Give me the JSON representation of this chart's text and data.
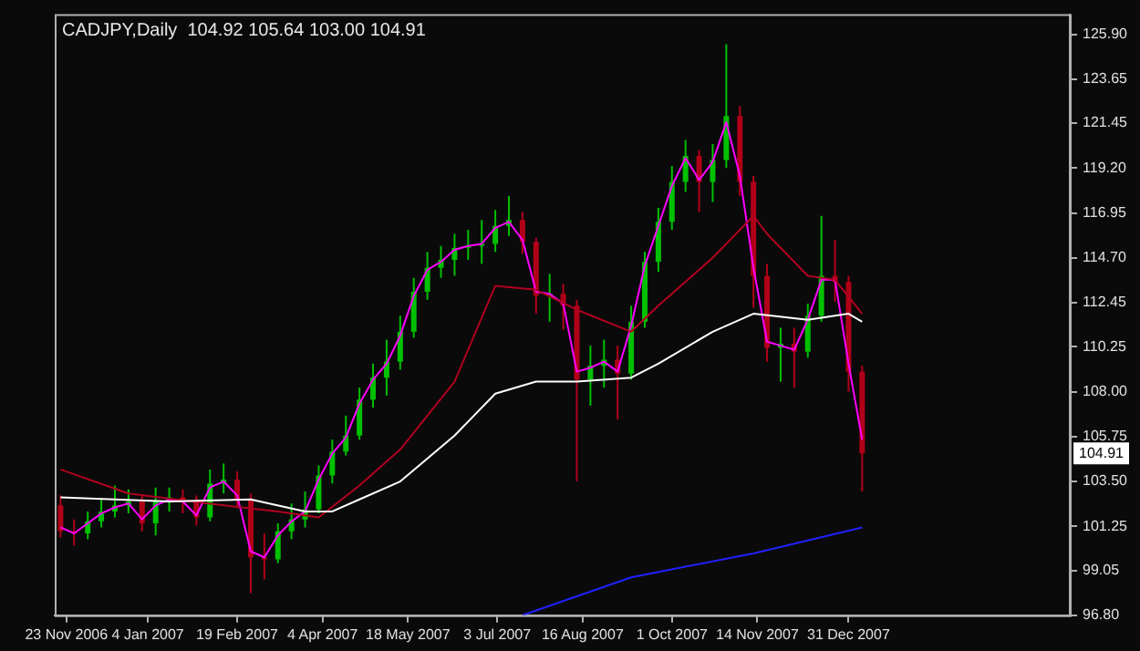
{
  "chart_data": {
    "type": "candlestick",
    "title": "CADJPY,Daily  104.92 105.64 103.00 104.91",
    "xlim": [
      "2006-11-17",
      "2008-04-23"
    ],
    "xticks": [
      {
        "value": "2006-11-23",
        "label": "23 Nov 2006"
      },
      {
        "value": "2007-01-04",
        "label": "4 Jan 2007"
      },
      {
        "value": "2007-02-19",
        "label": "19 Feb 2007"
      },
      {
        "value": "2007-04-04",
        "label": "4 Apr 2007"
      },
      {
        "value": "2007-05-18",
        "label": "18 May 2007"
      },
      {
        "value": "2007-07-03",
        "label": "3 Jul 2007"
      },
      {
        "value": "2007-08-16",
        "label": "16 Aug 2007"
      },
      {
        "value": "2007-10-01",
        "label": "1 Oct 2007"
      },
      {
        "value": "2007-11-14",
        "label": "14 Nov 2007"
      },
      {
        "value": "2007-12-31",
        "label": "31 Dec 2007"
      }
    ],
    "ylim": [
      96.8,
      126.9
    ],
    "yticks": [
      {
        "value": 96.8,
        "label": "96.80"
      },
      {
        "value": 99.05,
        "label": "99.05"
      },
      {
        "value": 101.25,
        "label": "101.25"
      },
      {
        "value": 103.5,
        "label": "103.50"
      },
      {
        "value": 105.75,
        "label": "105.75"
      },
      {
        "value": 108,
        "label": "108.00"
      },
      {
        "value": 110.25,
        "label": "110.25"
      },
      {
        "value": 112.45,
        "label": "112.45"
      },
      {
        "value": 114.7,
        "label": "114.70"
      },
      {
        "value": 116.95,
        "label": "116.95"
      },
      {
        "value": 119.2,
        "label": "119.20"
      },
      {
        "value": 121.45,
        "label": "121.45"
      },
      {
        "value": 123.65,
        "label": "123.65"
      },
      {
        "value": 125.9,
        "label": "125.90"
      }
    ],
    "annotations": [
      {
        "text": "104.91",
        "y": 104.91
      }
    ],
    "series": [
      {
        "type": "line",
        "color": "#ffffff",
        "x": [
          "2006-11-20",
          "2007-01-15",
          "2007-02-26",
          "2007-03-26",
          "2007-04-09",
          "2007-04-23",
          "2007-05-14",
          "2007-06-11",
          "2007-07-02",
          "2007-07-23",
          "2007-08-13",
          "2007-09-10",
          "2007-09-24",
          "2007-10-22",
          "2007-11-12",
          "2007-12-10",
          "2007-12-31",
          "2008-01-07"
        ],
        "values": [
          102.7,
          102.5,
          102.6,
          102.0,
          102.0,
          102.6,
          103.5,
          105.8,
          107.9,
          108.5,
          108.5,
          108.7,
          109.4,
          111.0,
          111.9,
          111.6,
          111.9,
          111.5
        ]
      },
      {
        "type": "line",
        "color": "#b00020",
        "x": [
          "2006-11-20",
          "2006-12-25",
          "2007-02-12",
          "2007-03-12",
          "2007-04-02",
          "2007-04-23",
          "2007-05-14",
          "2007-06-11",
          "2007-07-02",
          "2007-07-23",
          "2007-08-13",
          "2007-09-10",
          "2007-09-24",
          "2007-10-22",
          "2007-11-12",
          "2007-11-19",
          "2007-12-10",
          "2007-12-24",
          "2008-01-07"
        ],
        "values": [
          104.1,
          102.9,
          102.3,
          102.0,
          101.7,
          103.3,
          105.1,
          108.5,
          113.3,
          113.1,
          112.1,
          111.0,
          112.3,
          114.7,
          116.8,
          115.9,
          113.8,
          113.6,
          111.9
        ]
      },
      {
        "type": "line",
        "color": "#2020ff",
        "x": [
          "2007-07-16",
          "2007-09-10",
          "2007-11-12",
          "2008-01-07"
        ],
        "values": [
          96.8,
          98.7,
          99.9,
          101.2
        ]
      },
      {
        "type": "line",
        "color": "#ff00ff",
        "x": [
          "2006-11-20",
          "2006-11-27",
          "2006-12-04",
          "2006-12-11",
          "2006-12-18",
          "2006-12-25",
          "2007-01-01",
          "2007-01-08",
          "2007-01-15",
          "2007-01-22",
          "2007-01-29",
          "2007-02-05",
          "2007-02-12",
          "2007-02-19",
          "2007-02-26",
          "2007-03-05",
          "2007-03-12",
          "2007-03-19",
          "2007-03-26",
          "2007-04-02",
          "2007-04-09",
          "2007-04-16",
          "2007-04-23",
          "2007-04-30",
          "2007-05-07",
          "2007-05-14",
          "2007-05-21",
          "2007-05-28",
          "2007-06-04",
          "2007-06-11",
          "2007-06-18",
          "2007-06-25",
          "2007-07-02",
          "2007-07-09",
          "2007-07-16",
          "2007-07-23",
          "2007-07-30",
          "2007-08-06",
          "2007-08-13",
          "2007-08-20",
          "2007-08-27",
          "2007-09-03",
          "2007-09-10",
          "2007-09-17",
          "2007-09-24",
          "2007-10-01",
          "2007-10-08",
          "2007-10-15",
          "2007-10-22",
          "2007-10-29",
          "2007-11-05",
          "2007-11-12",
          "2007-11-19",
          "2007-11-26",
          "2007-12-03",
          "2007-12-10",
          "2007-12-17",
          "2007-12-24",
          "2007-12-31",
          "2008-01-07"
        ],
        "values": [
          101.2,
          100.9,
          101.4,
          101.9,
          102.2,
          102.4,
          101.6,
          102.3,
          102.6,
          102.5,
          101.8,
          103.2,
          103.5,
          102.8,
          100.0,
          99.7,
          100.8,
          101.5,
          102.0,
          103.6,
          104.9,
          105.7,
          107.4,
          108.6,
          109.4,
          110.8,
          112.8,
          114.1,
          114.5,
          115.1,
          115.3,
          115.4,
          116.2,
          116.5,
          115.6,
          113.0,
          112.9,
          112.4,
          109.0,
          109.2,
          109.5,
          109.0,
          111.3,
          114.3,
          116.3,
          118.3,
          119.7,
          118.6,
          119.5,
          121.5,
          118.8,
          114.2,
          110.5,
          110.3,
          110.1,
          111.6,
          113.6,
          113.6,
          109.4,
          105.6
        ]
      },
      {
        "type": "candlestick",
        "x": [
          "2006-11-20",
          "2006-11-27",
          "2006-12-04",
          "2006-12-11",
          "2006-12-18",
          "2006-12-25",
          "2007-01-01",
          "2007-01-08",
          "2007-01-15",
          "2007-01-22",
          "2007-01-29",
          "2007-02-05",
          "2007-02-12",
          "2007-02-19",
          "2007-02-26",
          "2007-03-05",
          "2007-03-12",
          "2007-03-19",
          "2007-03-26",
          "2007-04-02",
          "2007-04-09",
          "2007-04-16",
          "2007-04-23",
          "2007-04-30",
          "2007-05-07",
          "2007-05-14",
          "2007-05-21",
          "2007-05-28",
          "2007-06-04",
          "2007-06-11",
          "2007-06-18",
          "2007-06-25",
          "2007-07-02",
          "2007-07-09",
          "2007-07-16",
          "2007-07-23",
          "2007-07-30",
          "2007-08-06",
          "2007-08-13",
          "2007-08-20",
          "2007-08-27",
          "2007-09-03",
          "2007-09-10",
          "2007-09-17",
          "2007-09-24",
          "2007-10-01",
          "2007-10-08",
          "2007-10-15",
          "2007-10-22",
          "2007-10-29",
          "2007-11-05",
          "2007-11-12",
          "2007-11-19",
          "2007-11-26",
          "2007-12-03",
          "2007-12-10",
          "2007-12-17",
          "2007-12-24",
          "2007-12-31",
          "2008-01-07"
        ],
        "ohlc": [
          [
            102.3,
            102.8,
            100.7,
            101.0
          ],
          [
            101.0,
            101.6,
            100.3,
            100.9
          ],
          [
            100.9,
            102.0,
            100.6,
            101.5
          ],
          [
            101.5,
            102.6,
            101.2,
            102.0
          ],
          [
            102.0,
            103.3,
            101.7,
            102.3
          ],
          [
            102.3,
            103.1,
            101.9,
            102.5
          ],
          [
            102.5,
            102.8,
            101.0,
            101.4
          ],
          [
            101.4,
            103.2,
            100.8,
            102.5
          ],
          [
            102.5,
            103.2,
            102.0,
            102.7
          ],
          [
            102.7,
            103.1,
            101.9,
            102.5
          ],
          [
            102.5,
            102.8,
            101.3,
            101.7
          ],
          [
            101.7,
            104.1,
            101.5,
            103.4
          ],
          [
            103.4,
            104.4,
            102.9,
            103.6
          ],
          [
            103.6,
            104.0,
            102.2,
            102.6
          ],
          [
            102.6,
            102.9,
            97.9,
            99.7
          ],
          [
            99.7,
            100.9,
            98.6,
            99.6
          ],
          [
            99.6,
            101.4,
            99.4,
            101.0
          ],
          [
            101.0,
            102.4,
            100.6,
            101.6
          ],
          [
            101.6,
            103.0,
            101.2,
            102.1
          ],
          [
            102.1,
            104.3,
            101.9,
            103.8
          ],
          [
            103.8,
            105.6,
            103.4,
            105.0
          ],
          [
            105.0,
            106.8,
            104.8,
            105.8
          ],
          [
            105.8,
            108.2,
            105.6,
            107.6
          ],
          [
            107.6,
            109.4,
            107.2,
            108.7
          ],
          [
            108.7,
            110.6,
            107.8,
            109.5
          ],
          [
            109.5,
            111.8,
            109.1,
            111.0
          ],
          [
            111.0,
            113.7,
            110.7,
            113.0
          ],
          [
            113.0,
            115.0,
            112.6,
            114.2
          ],
          [
            114.2,
            115.3,
            113.7,
            114.6
          ],
          [
            114.6,
            115.9,
            113.8,
            115.2
          ],
          [
            115.2,
            116.1,
            114.6,
            115.3
          ],
          [
            115.3,
            116.6,
            114.4,
            115.4
          ],
          [
            115.4,
            117.1,
            115.0,
            116.3
          ],
          [
            116.3,
            117.8,
            115.8,
            116.6
          ],
          [
            116.6,
            117.0,
            114.9,
            115.5
          ],
          [
            115.5,
            115.7,
            111.9,
            112.8
          ],
          [
            112.8,
            113.9,
            111.5,
            112.9
          ],
          [
            112.9,
            113.4,
            111.1,
            112.3
          ],
          [
            112.3,
            112.6,
            103.5,
            108.6
          ],
          [
            108.6,
            110.3,
            107.3,
            109.3
          ],
          [
            109.3,
            110.6,
            108.2,
            109.6
          ],
          [
            109.6,
            110.3,
            106.6,
            108.9
          ],
          [
            108.9,
            112.3,
            108.6,
            111.5
          ],
          [
            111.5,
            115.0,
            111.2,
            114.5
          ],
          [
            114.5,
            117.2,
            114.0,
            116.5
          ],
          [
            116.5,
            119.3,
            116.1,
            118.5
          ],
          [
            118.5,
            120.6,
            118.0,
            119.8
          ],
          [
            119.8,
            120.1,
            117.0,
            118.5
          ],
          [
            118.5,
            120.4,
            117.5,
            119.6
          ],
          [
            119.6,
            125.4,
            119.2,
            121.8
          ],
          [
            121.8,
            122.3,
            117.8,
            118.5
          ],
          [
            118.5,
            118.8,
            112.2,
            113.8
          ],
          [
            113.8,
            114.4,
            109.5,
            110.2
          ],
          [
            110.2,
            111.2,
            108.5,
            110.4
          ],
          [
            110.4,
            111.2,
            108.2,
            110.0
          ],
          [
            110.0,
            112.4,
            109.7,
            111.8
          ],
          [
            111.8,
            116.8,
            111.5,
            113.8
          ],
          [
            113.8,
            115.6,
            112.5,
            113.5
          ],
          [
            113.5,
            113.8,
            108.0,
            109.0
          ],
          [
            109.0,
            109.3,
            103.0,
            104.91
          ]
        ],
        "colors": [
          "#b00018",
          "#b00018",
          "#00c000",
          "#00c000",
          "#00c000",
          "#00c000",
          "#b00018",
          "#00c000",
          "#00c000",
          "#b00018",
          "#b00018",
          "#00c000",
          "#00c000",
          "#b00018",
          "#b00018",
          "#b00018",
          "#00c000",
          "#00c000",
          "#00c000",
          "#00c000",
          "#00c000",
          "#00c000",
          "#00c000",
          "#00c000",
          "#00c000",
          "#00c000",
          "#00c000",
          "#00c000",
          "#00c000",
          "#00c000",
          "#00c000",
          "#00c000",
          "#00c000",
          "#00c000",
          "#b00018",
          "#b00018",
          "#00c000",
          "#b00018",
          "#b00018",
          "#00c000",
          "#00c000",
          "#b00018",
          "#00c000",
          "#00c000",
          "#00c000",
          "#00c000",
          "#00c000",
          "#b00018",
          "#00c000",
          "#00c000",
          "#b00018",
          "#b00018",
          "#b00018",
          "#00c000",
          "#b00018",
          "#00c000",
          "#00c000",
          "#b00018",
          "#b00018",
          "#b00018"
        ]
      }
    ]
  }
}
